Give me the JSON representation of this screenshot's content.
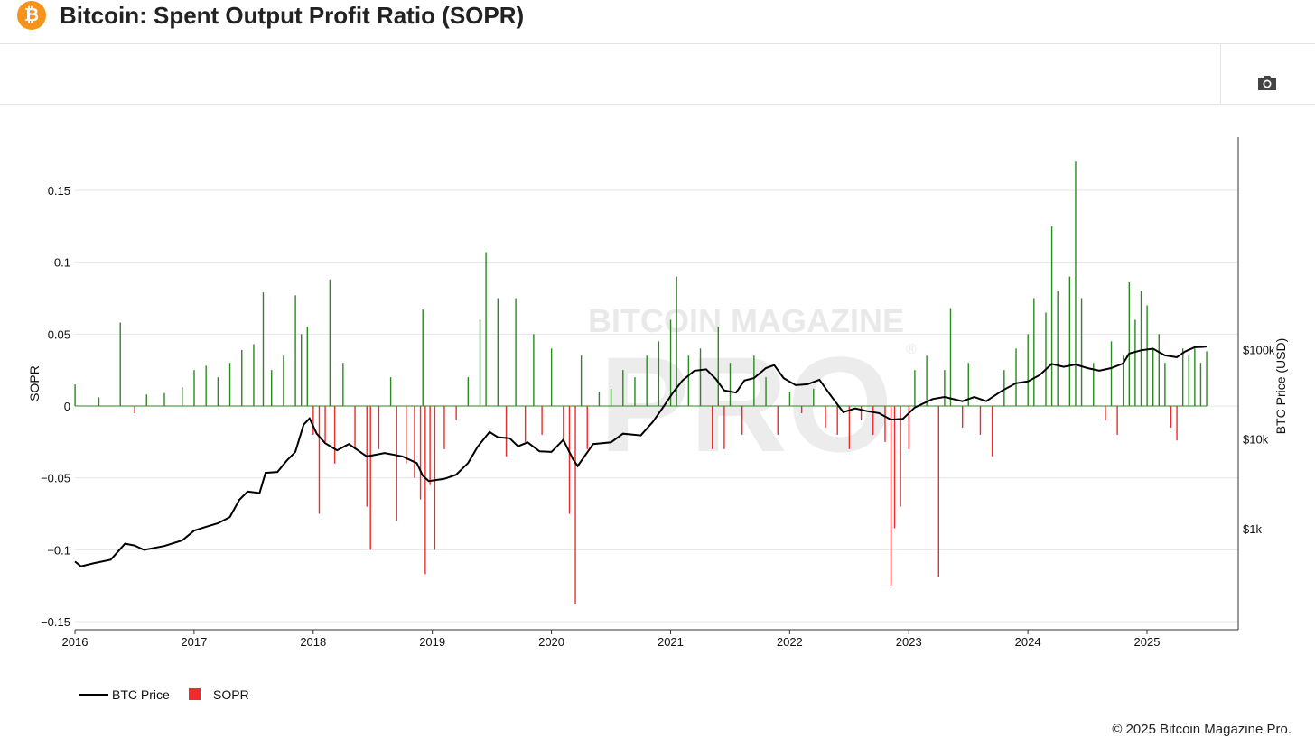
{
  "header": {
    "logo_glyph": "₿",
    "title": "Bitcoin: Spent Output Profit Ratio (SOPR)"
  },
  "toolbar": {
    "camera_icon": "camera-icon"
  },
  "watermark": {
    "line1": "BITCOIN MAGAZINE",
    "line2": "PRO",
    "mark": "®"
  },
  "legend": {
    "price_label": "BTC Price",
    "sopr_label": "SOPR"
  },
  "footer": {
    "copyright": "© 2025 Bitcoin Magazine Pro."
  },
  "colors": {
    "price": "#000000",
    "sopr_positive": "#2a8a1f",
    "sopr_negative": "#ef2b2b",
    "brand": "#f7931a"
  },
  "chart_data": {
    "type": "bar",
    "title": "Bitcoin: Spent Output Profit Ratio (SOPR)",
    "x_ticks": [
      "2016",
      "2017",
      "2018",
      "2019",
      "2020",
      "2021",
      "2022",
      "2023",
      "2024",
      "2025"
    ],
    "x_range": [
      2016.0,
      2025.75
    ],
    "y_left": {
      "label": "SOPR",
      "range": [
        -0.155,
        0.18
      ],
      "ticks": [
        0.15,
        0.1,
        0.05,
        0,
        -0.05,
        -0.1,
        -0.15
      ],
      "tick_labels": [
        "0.15",
        "0.1",
        "0.05",
        "0",
        "−0.05",
        "−0.1",
        "−0.15"
      ]
    },
    "y_right": {
      "label": "BTC Price (USD)",
      "scale": "log",
      "range": [
        250,
        180000
      ],
      "ticks": [
        1000,
        10000,
        100000
      ],
      "tick_labels": [
        "$1k",
        "$10k",
        "$100k"
      ]
    },
    "grid": true,
    "legend_position": "bottom-left",
    "series": [
      {
        "name": "BTC Price",
        "type": "line",
        "axis": "right",
        "points": [
          [
            2016.0,
            430
          ],
          [
            2016.05,
            380
          ],
          [
            2016.15,
            410
          ],
          [
            2016.3,
            450
          ],
          [
            2016.42,
            680
          ],
          [
            2016.5,
            650
          ],
          [
            2016.58,
            580
          ],
          [
            2016.75,
            640
          ],
          [
            2016.9,
            740
          ],
          [
            2017.0,
            950
          ],
          [
            2017.1,
            1050
          ],
          [
            2017.2,
            1150
          ],
          [
            2017.3,
            1350
          ],
          [
            2017.38,
            2100
          ],
          [
            2017.45,
            2600
          ],
          [
            2017.55,
            2500
          ],
          [
            2017.6,
            4200
          ],
          [
            2017.7,
            4300
          ],
          [
            2017.78,
            5800
          ],
          [
            2017.85,
            7200
          ],
          [
            2017.92,
            14500
          ],
          [
            2017.97,
            17000
          ],
          [
            2018.03,
            11500
          ],
          [
            2018.1,
            9000
          ],
          [
            2018.2,
            7500
          ],
          [
            2018.3,
            8800
          ],
          [
            2018.45,
            6400
          ],
          [
            2018.6,
            7000
          ],
          [
            2018.75,
            6400
          ],
          [
            2018.87,
            5400
          ],
          [
            2018.92,
            3900
          ],
          [
            2018.97,
            3400
          ],
          [
            2019.1,
            3600
          ],
          [
            2019.2,
            4000
          ],
          [
            2019.3,
            5400
          ],
          [
            2019.38,
            8200
          ],
          [
            2019.48,
            12000
          ],
          [
            2019.55,
            10500
          ],
          [
            2019.65,
            10200
          ],
          [
            2019.72,
            8300
          ],
          [
            2019.8,
            9200
          ],
          [
            2019.9,
            7300
          ],
          [
            2020.0,
            7200
          ],
          [
            2020.1,
            9800
          ],
          [
            2020.18,
            6000
          ],
          [
            2020.22,
            5000
          ],
          [
            2020.35,
            8800
          ],
          [
            2020.5,
            9200
          ],
          [
            2020.6,
            11500
          ],
          [
            2020.75,
            11000
          ],
          [
            2020.85,
            15500
          ],
          [
            2020.95,
            24000
          ],
          [
            2021.02,
            33000
          ],
          [
            2021.1,
            45000
          ],
          [
            2021.2,
            58000
          ],
          [
            2021.3,
            60000
          ],
          [
            2021.38,
            47000
          ],
          [
            2021.45,
            35000
          ],
          [
            2021.55,
            33000
          ],
          [
            2021.62,
            45000
          ],
          [
            2021.7,
            48000
          ],
          [
            2021.8,
            62000
          ],
          [
            2021.87,
            67000
          ],
          [
            2021.95,
            48000
          ],
          [
            2022.05,
            40000
          ],
          [
            2022.15,
            41000
          ],
          [
            2022.25,
            46000
          ],
          [
            2022.35,
            30000
          ],
          [
            2022.45,
            20000
          ],
          [
            2022.55,
            22000
          ],
          [
            2022.65,
            20500
          ],
          [
            2022.75,
            19500
          ],
          [
            2022.85,
            16500
          ],
          [
            2022.95,
            16800
          ],
          [
            2023.05,
            22500
          ],
          [
            2023.2,
            28000
          ],
          [
            2023.3,
            29500
          ],
          [
            2023.45,
            26500
          ],
          [
            2023.55,
            29500
          ],
          [
            2023.65,
            26500
          ],
          [
            2023.78,
            34500
          ],
          [
            2023.9,
            42000
          ],
          [
            2024.0,
            44000
          ],
          [
            2024.1,
            52000
          ],
          [
            2024.2,
            69000
          ],
          [
            2024.3,
            64000
          ],
          [
            2024.4,
            68000
          ],
          [
            2024.5,
            62000
          ],
          [
            2024.6,
            58000
          ],
          [
            2024.7,
            62000
          ],
          [
            2024.8,
            70000
          ],
          [
            2024.85,
            90000
          ],
          [
            2024.95,
            98000
          ],
          [
            2025.05,
            102000
          ],
          [
            2025.15,
            86000
          ],
          [
            2025.25,
            82000
          ],
          [
            2025.32,
            95000
          ],
          [
            2025.4,
            106000
          ],
          [
            2025.47,
            107000
          ],
          [
            2025.5,
            108000
          ]
        ]
      },
      {
        "name": "SOPR",
        "type": "bar",
        "axis": "left",
        "points": [
          [
            2016.0,
            0.015
          ],
          [
            2016.2,
            0.006
          ],
          [
            2016.38,
            0.058
          ],
          [
            2016.5,
            -0.005
          ],
          [
            2016.6,
            0.008
          ],
          [
            2016.75,
            0.009
          ],
          [
            2016.9,
            0.013
          ],
          [
            2017.0,
            0.025
          ],
          [
            2017.1,
            0.028
          ],
          [
            2017.2,
            0.02
          ],
          [
            2017.3,
            0.03
          ],
          [
            2017.4,
            0.039
          ],
          [
            2017.5,
            0.043
          ],
          [
            2017.58,
            0.079
          ],
          [
            2017.65,
            0.025
          ],
          [
            2017.75,
            0.035
          ],
          [
            2017.85,
            0.077
          ],
          [
            2017.9,
            0.05
          ],
          [
            2017.95,
            0.055
          ],
          [
            2018.0,
            -0.02
          ],
          [
            2018.05,
            -0.075
          ],
          [
            2018.1,
            -0.025
          ],
          [
            2018.14,
            0.088
          ],
          [
            2018.18,
            -0.04
          ],
          [
            2018.25,
            0.03
          ],
          [
            2018.35,
            -0.03
          ],
          [
            2018.45,
            -0.07
          ],
          [
            2018.48,
            -0.1
          ],
          [
            2018.55,
            -0.03
          ],
          [
            2018.65,
            0.02
          ],
          [
            2018.7,
            -0.08
          ],
          [
            2018.78,
            -0.04
          ],
          [
            2018.85,
            -0.05
          ],
          [
            2018.9,
            -0.065
          ],
          [
            2018.92,
            0.067
          ],
          [
            2018.94,
            -0.117
          ],
          [
            2018.98,
            -0.055
          ],
          [
            2019.02,
            -0.1
          ],
          [
            2019.1,
            -0.03
          ],
          [
            2019.2,
            -0.01
          ],
          [
            2019.3,
            0.02
          ],
          [
            2019.4,
            0.06
          ],
          [
            2019.45,
            0.107
          ],
          [
            2019.55,
            0.075
          ],
          [
            2019.62,
            -0.035
          ],
          [
            2019.7,
            0.075
          ],
          [
            2019.78,
            -0.025
          ],
          [
            2019.85,
            0.05
          ],
          [
            2019.92,
            -0.02
          ],
          [
            2020.0,
            0.04
          ],
          [
            2020.1,
            -0.025
          ],
          [
            2020.15,
            -0.075
          ],
          [
            2020.2,
            -0.138
          ],
          [
            2020.25,
            0.035
          ],
          [
            2020.3,
            -0.03
          ],
          [
            2020.4,
            0.01
          ],
          [
            2020.5,
            0.012
          ],
          [
            2020.6,
            0.025
          ],
          [
            2020.7,
            0.02
          ],
          [
            2020.8,
            0.035
          ],
          [
            2020.9,
            0.045
          ],
          [
            2021.0,
            0.06
          ],
          [
            2021.05,
            0.09
          ],
          [
            2021.15,
            0.035
          ],
          [
            2021.25,
            0.04
          ],
          [
            2021.35,
            -0.03
          ],
          [
            2021.4,
            0.055
          ],
          [
            2021.45,
            -0.03
          ],
          [
            2021.5,
            0.03
          ],
          [
            2021.6,
            -0.02
          ],
          [
            2021.7,
            0.035
          ],
          [
            2021.8,
            0.02
          ],
          [
            2021.9,
            -0.02
          ],
          [
            2022.0,
            0.01
          ],
          [
            2022.1,
            -0.005
          ],
          [
            2022.2,
            0.012
          ],
          [
            2022.3,
            -0.015
          ],
          [
            2022.4,
            -0.02
          ],
          [
            2022.5,
            -0.03
          ],
          [
            2022.6,
            -0.01
          ],
          [
            2022.7,
            -0.02
          ],
          [
            2022.8,
            -0.025
          ],
          [
            2022.85,
            -0.125
          ],
          [
            2022.88,
            -0.085
          ],
          [
            2022.93,
            -0.07
          ],
          [
            2023.0,
            -0.03
          ],
          [
            2023.05,
            0.025
          ],
          [
            2023.15,
            0.035
          ],
          [
            2023.25,
            -0.119
          ],
          [
            2023.3,
            0.025
          ],
          [
            2023.35,
            0.068
          ],
          [
            2023.45,
            -0.015
          ],
          [
            2023.5,
            0.03
          ],
          [
            2023.6,
            -0.02
          ],
          [
            2023.7,
            -0.035
          ],
          [
            2023.8,
            0.025
          ],
          [
            2023.9,
            0.04
          ],
          [
            2024.0,
            0.05
          ],
          [
            2024.05,
            0.075
          ],
          [
            2024.15,
            0.065
          ],
          [
            2024.2,
            0.125
          ],
          [
            2024.25,
            0.08
          ],
          [
            2024.35,
            0.09
          ],
          [
            2024.4,
            0.17
          ],
          [
            2024.45,
            0.075
          ],
          [
            2024.55,
            0.03
          ],
          [
            2024.65,
            -0.01
          ],
          [
            2024.7,
            0.045
          ],
          [
            2024.75,
            -0.02
          ],
          [
            2024.8,
            0.035
          ],
          [
            2024.85,
            0.086
          ],
          [
            2024.9,
            0.06
          ],
          [
            2024.95,
            0.08
          ],
          [
            2025.0,
            0.07
          ],
          [
            2025.05,
            0.04
          ],
          [
            2025.1,
            0.05
          ],
          [
            2025.15,
            0.03
          ],
          [
            2025.2,
            -0.015
          ],
          [
            2025.25,
            -0.024
          ],
          [
            2025.3,
            0.04
          ],
          [
            2025.35,
            0.035
          ],
          [
            2025.4,
            0.04
          ],
          [
            2025.45,
            0.03
          ],
          [
            2025.5,
            0.038
          ]
        ]
      }
    ]
  }
}
